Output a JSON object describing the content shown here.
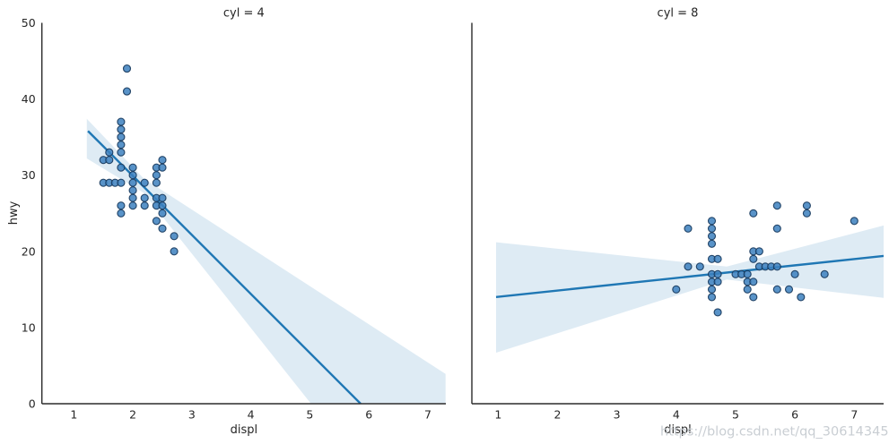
{
  "figure": {
    "watermark": "https://blog.csdn.net/qq_30614345"
  },
  "style": {
    "line_color": "#1f77b4",
    "band_color": "rgba(31,119,180,0.15)",
    "point_fill": "#3c80be",
    "point_edge": "#17395c",
    "spine_color": "#2b2b2b",
    "text_color": "#262626",
    "watermark_color": "#c9ced3"
  },
  "chart_data": [
    {
      "type": "scatter",
      "title": "cyl = 4",
      "xlabel": "displ",
      "ylabel": "hwy",
      "xlim": [
        0.459,
        7.304
      ],
      "ylim": [
        0,
        50
      ],
      "xticks": [
        1,
        2,
        3,
        4,
        5,
        6,
        7
      ],
      "yticks": [
        0,
        10,
        20,
        30,
        40,
        50
      ],
      "grid": false,
      "points": [
        [
          1.5,
          29
        ],
        [
          1.5,
          32
        ],
        [
          1.6,
          33
        ],
        [
          1.6,
          32
        ],
        [
          1.6,
          29
        ],
        [
          1.7,
          29
        ],
        [
          1.8,
          37
        ],
        [
          1.8,
          36
        ],
        [
          1.8,
          35
        ],
        [
          1.8,
          34
        ],
        [
          1.8,
          33
        ],
        [
          1.8,
          31
        ],
        [
          1.8,
          29
        ],
        [
          1.8,
          26
        ],
        [
          1.8,
          25
        ],
        [
          1.9,
          44
        ],
        [
          1.9,
          41
        ],
        [
          2.0,
          31
        ],
        [
          2.0,
          30
        ],
        [
          2.0,
          29
        ],
        [
          2.0,
          28
        ],
        [
          2.0,
          27
        ],
        [
          2.0,
          26
        ],
        [
          2.2,
          29
        ],
        [
          2.2,
          27
        ],
        [
          2.2,
          26
        ],
        [
          2.4,
          31
        ],
        [
          2.4,
          30
        ],
        [
          2.4,
          29
        ],
        [
          2.4,
          27
        ],
        [
          2.4,
          26
        ],
        [
          2.4,
          24
        ],
        [
          2.5,
          32
        ],
        [
          2.5,
          31
        ],
        [
          2.5,
          27
        ],
        [
          2.5,
          26
        ],
        [
          2.5,
          25
        ],
        [
          2.5,
          23
        ],
        [
          2.7,
          22
        ],
        [
          2.7,
          20
        ]
      ],
      "regression_line": {
        "x": [
          1.24,
          5.86
        ],
        "y": [
          35.8,
          0
        ]
      },
      "ci_band": [
        [
          1.22,
          37.4
        ],
        [
          2.18,
          29.6
        ],
        [
          7.3,
          3.9
        ],
        [
          7.3,
          0.0
        ],
        [
          5.02,
          0.0
        ],
        [
          2.18,
          27.7
        ],
        [
          1.22,
          32.2
        ]
      ]
    },
    {
      "type": "scatter",
      "title": "cyl = 8",
      "xlabel": "displ",
      "ylabel": "",
      "xlim": [
        0.557,
        7.494
      ],
      "ylim": [
        0,
        50
      ],
      "xticks": [
        1,
        2,
        3,
        4,
        5,
        6,
        7
      ],
      "yticks": [],
      "grid": false,
      "points": [
        [
          4.0,
          15
        ],
        [
          4.2,
          23
        ],
        [
          4.2,
          18
        ],
        [
          4.4,
          18
        ],
        [
          4.6,
          24
        ],
        [
          4.6,
          23
        ],
        [
          4.6,
          22
        ],
        [
          4.6,
          21
        ],
        [
          4.6,
          19
        ],
        [
          4.6,
          17
        ],
        [
          4.6,
          16
        ],
        [
          4.6,
          15
        ],
        [
          4.6,
          14
        ],
        [
          4.7,
          19
        ],
        [
          4.7,
          17
        ],
        [
          4.7,
          16
        ],
        [
          4.7,
          12
        ],
        [
          5.0,
          17
        ],
        [
          5.1,
          17
        ],
        [
          5.2,
          17
        ],
        [
          5.2,
          16
        ],
        [
          5.2,
          15
        ],
        [
          5.3,
          25
        ],
        [
          5.3,
          20
        ],
        [
          5.3,
          19
        ],
        [
          5.3,
          16
        ],
        [
          5.3,
          14
        ],
        [
          5.4,
          20
        ],
        [
          5.4,
          18
        ],
        [
          5.5,
          18
        ],
        [
          5.6,
          18
        ],
        [
          5.7,
          26
        ],
        [
          5.7,
          23
        ],
        [
          5.7,
          18
        ],
        [
          5.7,
          15
        ],
        [
          5.9,
          15
        ],
        [
          6.0,
          17
        ],
        [
          6.1,
          14
        ],
        [
          6.2,
          26
        ],
        [
          6.2,
          25
        ],
        [
          6.5,
          17
        ],
        [
          7.0,
          24
        ]
      ],
      "regression_line": {
        "x": [
          0.965,
          7.494
        ],
        "y": [
          14.0,
          19.4
        ]
      },
      "ci_band": [
        [
          0.965,
          21.2
        ],
        [
          4.85,
          18.0
        ],
        [
          7.494,
          23.4
        ],
        [
          7.494,
          13.9
        ],
        [
          4.85,
          16.3
        ],
        [
          0.965,
          6.7
        ]
      ]
    }
  ]
}
